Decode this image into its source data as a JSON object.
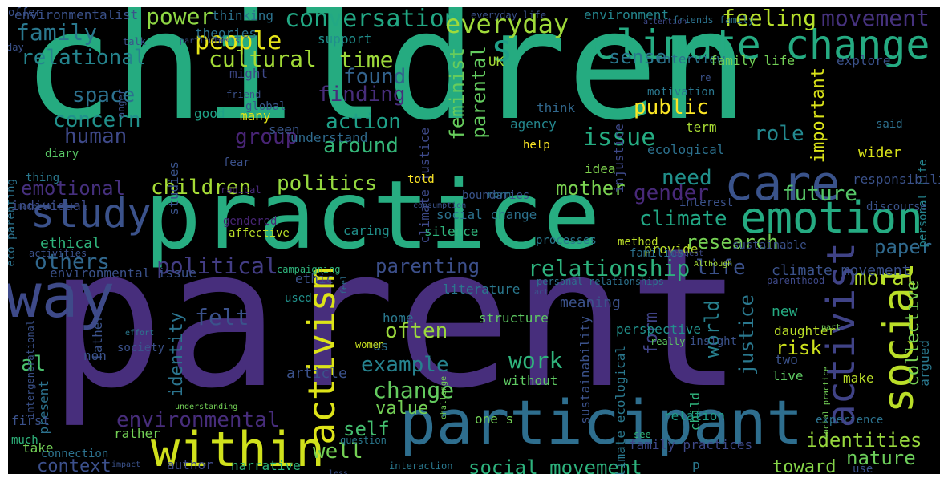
{
  "words": [
    {
      "text": "children",
      "color": "#25ab80",
      "rotated": false
    },
    {
      "text": "parent",
      "color": "#472e7c",
      "rotated": false
    },
    {
      "text": "practice",
      "color": "#27ad81",
      "rotated": false
    },
    {
      "text": "participant",
      "color": "#2e6e8e",
      "rotated": false
    },
    {
      "text": "climate change",
      "color": "#25ab82",
      "rotated": false
    },
    {
      "text": "emotion",
      "color": "#25ab82",
      "rotated": false
    },
    {
      "text": "care",
      "color": "#3a538b",
      "rotated": false
    },
    {
      "text": "within",
      "color": "#d0e11c",
      "rotated": false
    },
    {
      "text": "study",
      "color": "#3b528b",
      "rotated": false
    },
    {
      "text": "way",
      "color": "#3e4a89",
      "rotated": false
    },
    {
      "text": "activist",
      "color": "#404387",
      "rotated": true
    },
    {
      "text": "social",
      "color": "#bade28",
      "rotated": true
    },
    {
      "text": "activism",
      "color": "#dde318",
      "rotated": true
    },
    {
      "text": "s",
      "color": "#1f9f88",
      "rotated": false
    },
    {
      "text": "conversation",
      "color": "#22a884",
      "rotated": false
    },
    {
      "text": "everyday",
      "color": "#9fda3a",
      "rotated": false
    },
    {
      "text": "power",
      "color": "#8fd744",
      "rotated": false
    },
    {
      "text": "family",
      "color": "#2a788e",
      "rotated": false
    },
    {
      "text": "people",
      "color": "#e5e419",
      "rotated": false
    },
    {
      "text": "relational",
      "color": "#25848e",
      "rotated": false
    },
    {
      "text": "cultural",
      "color": "#a2da37",
      "rotated": false
    },
    {
      "text": "time",
      "color": "#9dd93b",
      "rotated": false
    },
    {
      "text": "found",
      "color": "#33638d",
      "rotated": false
    },
    {
      "text": "finding",
      "color": "#472d7b",
      "rotated": false
    },
    {
      "text": "space",
      "color": "#2c718e",
      "rotated": false
    },
    {
      "text": "concern",
      "color": "#21918c",
      "rotated": false
    },
    {
      "text": "human",
      "color": "#3e4989",
      "rotated": false
    },
    {
      "text": "group",
      "color": "#482475",
      "rotated": false
    },
    {
      "text": "action",
      "color": "#1fa088",
      "rotated": false
    },
    {
      "text": "around",
      "color": "#35b779",
      "rotated": false
    },
    {
      "text": "issue",
      "color": "#25ac82",
      "rotated": false
    },
    {
      "text": "public",
      "color": "#fde725",
      "rotated": false
    },
    {
      "text": "role",
      "color": "#23888e",
      "rotated": false
    },
    {
      "text": "feminist",
      "color": "#67cc5c",
      "rotated": true
    },
    {
      "text": "parental",
      "color": "#63cb5f",
      "rotated": true
    },
    {
      "text": "important",
      "color": "#dae319",
      "rotated": true
    },
    {
      "text": "movement",
      "color": "#46327e",
      "rotated": false
    },
    {
      "text": "feeling",
      "color": "#b5de2b",
      "rotated": false
    },
    {
      "text": "sense",
      "color": "#2a788e",
      "rotated": false
    },
    {
      "text": "emotional",
      "color": "#46307e",
      "rotated": false
    },
    {
      "text": "politics",
      "color": "#95d840",
      "rotated": false
    },
    {
      "text": "children",
      "color": "#a5db36",
      "rotated": false
    },
    {
      "text": "need",
      "color": "#21918c",
      "rotated": false
    },
    {
      "text": "future",
      "color": "#56c667",
      "rotated": false
    },
    {
      "text": "gender",
      "color": "#482979",
      "rotated": false
    },
    {
      "text": "mother",
      "color": "#7ad151",
      "rotated": false
    },
    {
      "text": "climate",
      "color": "#22a785",
      "rotated": false
    },
    {
      "text": "research",
      "color": "#75d054",
      "rotated": false
    },
    {
      "text": "paper",
      "color": "#306a8e",
      "rotated": false
    },
    {
      "text": "political",
      "color": "#433d84",
      "rotated": false
    },
    {
      "text": "others",
      "color": "#31688e",
      "rotated": false
    },
    {
      "text": "relationship",
      "color": "#2db27d",
      "rotated": false
    },
    {
      "text": "life",
      "color": "#3b518b",
      "rotated": false
    },
    {
      "text": "parenting",
      "color": "#3c4f8a",
      "rotated": false
    },
    {
      "text": "moral",
      "color": "#b5de2b",
      "rotated": false
    },
    {
      "text": "collective",
      "color": "#77d153",
      "rotated": true
    },
    {
      "text": "felt",
      "color": "#3b528b",
      "rotated": false
    },
    {
      "text": "often",
      "color": "#9bd93c",
      "rotated": false
    },
    {
      "text": "identity",
      "color": "#2b748e",
      "rotated": true
    },
    {
      "text": "world",
      "color": "#27808e",
      "rotated": true
    },
    {
      "text": "justice",
      "color": "#2a788e",
      "rotated": true
    },
    {
      "text": "form",
      "color": "#404387",
      "rotated": true
    },
    {
      "text": "risk",
      "color": "#cde11d",
      "rotated": false
    },
    {
      "text": "al",
      "color": "#4ac16d",
      "rotated": false
    },
    {
      "text": "example",
      "color": "#26828e",
      "rotated": false
    },
    {
      "text": "work",
      "color": "#2fb47c",
      "rotated": false
    },
    {
      "text": "change",
      "color": "#63cb5f",
      "rotated": false
    },
    {
      "text": "environmental",
      "color": "#472d7b",
      "rotated": false
    },
    {
      "text": "value",
      "color": "#74d055",
      "rotated": false
    },
    {
      "text": "self",
      "color": "#45bf70",
      "rotated": false
    },
    {
      "text": "identities",
      "color": "#98d83e",
      "rotated": false
    },
    {
      "text": "nature",
      "color": "#6ccd5a",
      "rotated": false
    },
    {
      "text": "well",
      "color": "#75d054",
      "rotated": false
    },
    {
      "text": "context",
      "color": "#3c508b",
      "rotated": false
    },
    {
      "text": "social movement",
      "color": "#2db27d",
      "rotated": false
    },
    {
      "text": "toward",
      "color": "#86d549",
      "rotated": false
    },
    {
      "text": "environmentalist",
      "color": "#3b528b",
      "rotated": false
    },
    {
      "text": "thinking",
      "color": "#2c728e",
      "rotated": false
    },
    {
      "text": "theories",
      "color": "#2c738e",
      "rotated": false
    },
    {
      "text": "environment",
      "color": "#24868e",
      "rotated": false
    },
    {
      "text": "support",
      "color": "#218f8d",
      "rotated": false
    },
    {
      "text": "UK",
      "color": "#a5db36",
      "rotated": false
    },
    {
      "text": "might",
      "color": "#3e4989",
      "rotated": false
    },
    {
      "text": "interview",
      "color": "#2c728e",
      "rotated": false
    },
    {
      "text": "family life",
      "color": "#73d056",
      "rotated": false
    },
    {
      "text": "explore",
      "color": "#3b528b",
      "rotated": false
    },
    {
      "text": "global",
      "color": "#38588c",
      "rotated": false
    },
    {
      "text": "good",
      "color": "#1fa287",
      "rotated": false
    },
    {
      "text": "many",
      "color": "#e2e418",
      "rotated": false
    },
    {
      "text": "seen",
      "color": "#39568c",
      "rotated": false
    },
    {
      "text": "understand",
      "color": "#2f6b8e",
      "rotated": false
    },
    {
      "text": "think",
      "color": "#31688e",
      "rotated": false
    },
    {
      "text": "agency",
      "color": "#24878e",
      "rotated": false
    },
    {
      "text": "climate justice",
      "color": "#3e4a89",
      "rotated": true
    },
    {
      "text": "injustice",
      "color": "#3e4989",
      "rotated": true
    },
    {
      "text": "motivation",
      "color": "#2a778e",
      "rotated": false
    },
    {
      "text": "term",
      "color": "#a8db34",
      "rotated": false
    },
    {
      "text": "said",
      "color": "#2d708e",
      "rotated": false
    },
    {
      "text": "personal life",
      "color": "#25848e",
      "rotated": true
    },
    {
      "text": "ecological",
      "color": "#2c718e",
      "rotated": false
    },
    {
      "text": "wider",
      "color": "#d8e219",
      "rotated": false
    },
    {
      "text": "help",
      "color": "#fde725",
      "rotated": false
    },
    {
      "text": "idea",
      "color": "#7fd34e",
      "rotated": false
    },
    {
      "text": "studies",
      "color": "#3a538b",
      "rotated": true
    },
    {
      "text": "eco parenting",
      "color": "#2c738e",
      "rotated": true
    },
    {
      "text": "diary",
      "color": "#58c765",
      "rotated": false
    },
    {
      "text": "fear",
      "color": "#3b518b",
      "rotated": false
    },
    {
      "text": "thing",
      "color": "#2a788e",
      "rotated": false
    },
    {
      "text": "told",
      "color": "#fde725",
      "rotated": false
    },
    {
      "text": "responsibility",
      "color": "#3b528b",
      "rotated": false
    },
    {
      "text": "radical",
      "color": "#482979",
      "rotated": false
    },
    {
      "text": "boundaries",
      "color": "#3a548c",
      "rotated": false
    },
    {
      "text": "norm",
      "color": "#2c728e",
      "rotated": false
    },
    {
      "text": "individual",
      "color": "#3e4c8a",
      "rotated": false
    },
    {
      "text": "material",
      "color": "#3b528b",
      "rotated": false
    },
    {
      "text": "consumption",
      "color": "#3b528b",
      "rotated": false
    },
    {
      "text": "interest",
      "color": "#3b528b",
      "rotated": false
    },
    {
      "text": "discourse",
      "color": "#3a538b",
      "rotated": false
    },
    {
      "text": "gendered",
      "color": "#482576",
      "rotated": false
    },
    {
      "text": "social change",
      "color": "#2c728e",
      "rotated": false
    },
    {
      "text": "ethical",
      "color": "#2fb47c",
      "rotated": false
    },
    {
      "text": "affective",
      "color": "#bade28",
      "rotated": false
    },
    {
      "text": "caring",
      "color": "#21918c",
      "rotated": false
    },
    {
      "text": "silence",
      "color": "#2fb47c",
      "rotated": false
    },
    {
      "text": "provide",
      "color": "#bade28",
      "rotated": false
    },
    {
      "text": "activities",
      "color": "#3b528b",
      "rotated": false
    },
    {
      "text": "processes",
      "color": "#2a788e",
      "rotated": false
    },
    {
      "text": "method",
      "color": "#bade28",
      "rotated": false
    },
    {
      "text": "sustainable",
      "color": "#3b528b",
      "rotated": false
    },
    {
      "text": "families",
      "color": "#2c728e",
      "rotated": false
    },
    {
      "text": "suggest",
      "color": "#3e4989",
      "rotated": false
    },
    {
      "text": "environmental issue",
      "color": "#3b528b",
      "rotated": false
    },
    {
      "text": "campaigning",
      "color": "#2fb47c",
      "rotated": false
    },
    {
      "text": "ethic",
      "color": "#3b528b",
      "rotated": false
    },
    {
      "text": "feel",
      "color": "#2c728e",
      "rotated": true
    },
    {
      "text": "personal relationships",
      "color": "#2c728e",
      "rotated": false
    },
    {
      "text": "climate movement",
      "color": "#3b528b",
      "rotated": false
    },
    {
      "text": "Although",
      "color": "#a5db36",
      "rotated": false
    },
    {
      "text": "parenthood",
      "color": "#3e4989",
      "rotated": false
    },
    {
      "text": "literature",
      "color": "#2a788e",
      "rotated": false
    },
    {
      "text": "used",
      "color": "#21918c",
      "rotated": false
    },
    {
      "text": "act",
      "color": "#3b528b",
      "rotated": false
    },
    {
      "text": "insight",
      "color": "#3b528b",
      "rotated": false
    },
    {
      "text": "intergenerational",
      "color": "#3b528b",
      "rotated": true
    },
    {
      "text": "father",
      "color": "#3b528b",
      "rotated": true
    },
    {
      "text": "home",
      "color": "#2a788e",
      "rotated": false
    },
    {
      "text": "structure",
      "color": "#5ec962",
      "rotated": false
    },
    {
      "text": "new",
      "color": "#25ab82",
      "rotated": false
    },
    {
      "text": "daughter",
      "color": "#bade28",
      "rotated": false
    },
    {
      "text": "part",
      "color": "#73d056",
      "rotated": false
    },
    {
      "text": "society",
      "color": "#3b528b",
      "rotated": false
    },
    {
      "text": "effort",
      "color": "#2a788e",
      "rotated": false
    },
    {
      "text": "non",
      "color": "#3b528b",
      "rotated": false
    },
    {
      "text": "women",
      "color": "#c8e020",
      "rotated": false
    },
    {
      "text": "us",
      "color": "#2c728e",
      "rotated": false
    },
    {
      "text": "perspective",
      "color": "#21918c",
      "rotated": false
    },
    {
      "text": "really",
      "color": "#5ec962",
      "rotated": false
    },
    {
      "text": "two",
      "color": "#3b528b",
      "rotated": false
    },
    {
      "text": "live",
      "color": "#5ec962",
      "rotated": false
    },
    {
      "text": "make",
      "color": "#bade28",
      "rotated": false
    },
    {
      "text": "argued",
      "color": "#2a788e",
      "rotated": true
    },
    {
      "text": "social practice",
      "color": "#73d056",
      "rotated": true
    },
    {
      "text": "article",
      "color": "#3b528b",
      "rotated": false
    },
    {
      "text": "challenge",
      "color": "#73d056",
      "rotated": true
    },
    {
      "text": "without",
      "color": "#5ec962",
      "rotated": false
    },
    {
      "text": "meaning",
      "color": "#3b528b",
      "rotated": false
    },
    {
      "text": "sustainability",
      "color": "#3b528b",
      "rotated": true
    },
    {
      "text": "climate ecological",
      "color": "#2a788e",
      "rotated": true
    },
    {
      "text": "present",
      "color": "#2c728e",
      "rotated": true
    },
    {
      "text": "child",
      "color": "#2fb47c",
      "rotated": true
    },
    {
      "text": "relation",
      "color": "#1f9e89",
      "rotated": false
    },
    {
      "text": "understanding",
      "color": "#73d056",
      "rotated": false
    },
    {
      "text": "first",
      "color": "#3b528b",
      "rotated": false
    },
    {
      "text": "rather",
      "color": "#73d056",
      "rotated": false
    },
    {
      "text": "take",
      "color": "#73d056",
      "rotated": false
    },
    {
      "text": "one s",
      "color": "#73d056",
      "rotated": false
    },
    {
      "text": "much",
      "color": "#2fb47c",
      "rotated": false
    },
    {
      "text": "question",
      "color": "#2a788e",
      "rotated": false
    },
    {
      "text": "connection",
      "color": "#2c728e",
      "rotated": false
    },
    {
      "text": "impact",
      "color": "#3b528b",
      "rotated": false
    },
    {
      "text": "author",
      "color": "#3e4989",
      "rotated": false
    },
    {
      "text": "narrative",
      "color": "#2fb47c",
      "rotated": false
    },
    {
      "text": "interaction",
      "color": "#2a788e",
      "rotated": false
    },
    {
      "text": "less",
      "color": "#3b528b",
      "rotated": false
    },
    {
      "text": "family practices",
      "color": "#3e4989",
      "rotated": false
    },
    {
      "text": "see",
      "color": "#2fb47c",
      "rotated": false
    },
    {
      "text": "p",
      "color": "#2a788e",
      "rotated": false
    },
    {
      "text": "experience",
      "color": "#2c728e",
      "rotated": false
    },
    {
      "text": "use",
      "color": "#3b528b",
      "rotated": false
    },
    {
      "text": "everyday life",
      "color": "#3b528b",
      "rotated": false
    },
    {
      "text": "friends family",
      "color": "#2c728e",
      "rotated": false
    },
    {
      "text": "attention",
      "color": "#3e4989",
      "rotated": false
    },
    {
      "text": "re",
      "color": "#3b528b",
      "rotated": false
    },
    {
      "text": "talk",
      "color": "#3b528b",
      "rotated": false
    },
    {
      "text": "day",
      "color": "#3b528b",
      "rotated": false
    },
    {
      "text": "particular",
      "color": "#3b528b",
      "rotated": false
    },
    {
      "text": "anger",
      "color": "#3b528b",
      "rotated": true
    },
    {
      "text": "friend",
      "color": "#3b528b",
      "rotated": false
    },
    {
      "text": "thesis",
      "color": "#3b528b",
      "rotated": false
    },
    {
      "text": "offer",
      "color": "#3b528b",
      "rotated": false
    }
  ]
}
